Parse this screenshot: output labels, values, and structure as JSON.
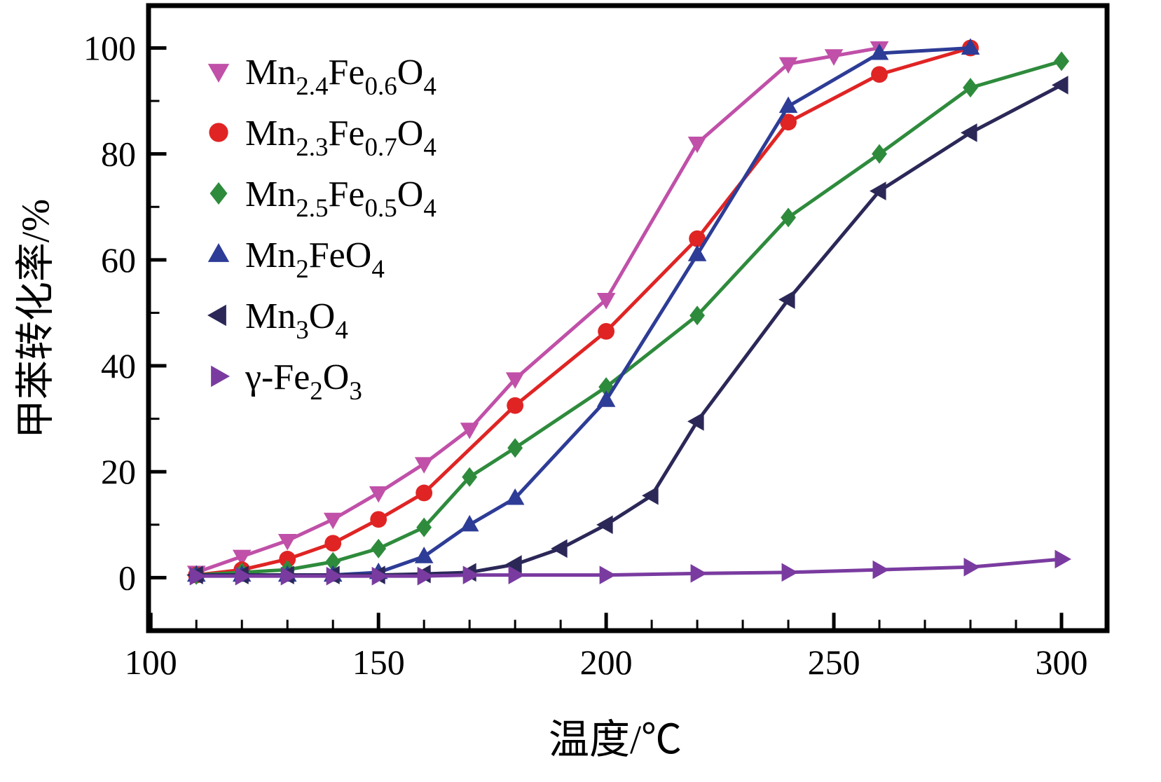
{
  "figure": {
    "background": "#ffffff",
    "frame_color": "#000000",
    "tick_color": "#000000",
    "text_color": "#000000"
  },
  "chart_data": {
    "type": "line",
    "title": "",
    "xlabel": "温度/℃",
    "ylabel": "甲苯转化率/%",
    "xlim": [
      99.5,
      310
    ],
    "ylim": [
      -10,
      108
    ],
    "x_ticks": [
      100,
      150,
      200,
      250,
      300
    ],
    "y_ticks": [
      0,
      20,
      40,
      60,
      80,
      100
    ],
    "x_minor_step": 10,
    "y_minor_step": 10,
    "grid": false,
    "legend_position": "top-left",
    "series": [
      {
        "name": "Mn_{2.4}Fe_{0.6}O_{4}",
        "marker": "triangle-down",
        "color": "#c050a8",
        "x": [
          110,
          120,
          130,
          140,
          150,
          160,
          170,
          180,
          200,
          220,
          240,
          250,
          260
        ],
        "y": [
          1,
          4,
          7,
          11,
          16,
          21.5,
          28,
          37.5,
          52.5,
          82,
          97,
          98.5,
          100
        ]
      },
      {
        "name": "Mn_{2.3}Fe_{0.7}O_{4}",
        "marker": "circle",
        "color": "#e02424",
        "x": [
          110,
          120,
          130,
          140,
          150,
          160,
          180,
          200,
          220,
          240,
          260,
          280
        ],
        "y": [
          0.5,
          1.5,
          3.5,
          6.5,
          11,
          16,
          32.5,
          46.5,
          64,
          86,
          95,
          100
        ]
      },
      {
        "name": "Mn_{2.5}Fe_{0.5}O_{4}",
        "marker": "diamond",
        "color": "#2e8b3c",
        "x": [
          110,
          120,
          130,
          140,
          150,
          160,
          170,
          180,
          200,
          220,
          240,
          260,
          280,
          300
        ],
        "y": [
          0.5,
          1,
          1.5,
          3,
          5.5,
          9.5,
          19,
          24.5,
          36,
          49.5,
          68,
          80,
          92.5,
          97.5
        ]
      },
      {
        "name": "Mn_{2}FeO_{4}",
        "marker": "triangle-up",
        "color": "#2d3c96",
        "x": [
          110,
          120,
          130,
          140,
          150,
          160,
          170,
          180,
          200,
          220,
          240,
          260,
          280
        ],
        "y": [
          0.5,
          0.5,
          0.5,
          0.5,
          1,
          4,
          10,
          15,
          33.5,
          61,
          89,
          99,
          100
        ]
      },
      {
        "name": "Mn_{3}O_{4}",
        "marker": "triangle-left",
        "color": "#2b2858",
        "x": [
          110,
          120,
          130,
          140,
          150,
          160,
          170,
          180,
          190,
          200,
          210,
          220,
          240,
          260,
          280,
          300
        ],
        "y": [
          0.5,
          0.5,
          0.5,
          0.5,
          0.5,
          0.7,
          1,
          2.5,
          5.5,
          10,
          15.5,
          29.5,
          52.5,
          73,
          84,
          93
        ]
      },
      {
        "name": "γ-Fe_{2}O_{3}",
        "marker": "triangle-right",
        "color": "#7a3ba0",
        "x": [
          110,
          120,
          130,
          140,
          150,
          160,
          170,
          180,
          200,
          220,
          240,
          260,
          280,
          300
        ],
        "y": [
          0.3,
          0.3,
          0.3,
          0.3,
          0.3,
          0.3,
          0.5,
          0.5,
          0.5,
          0.8,
          1,
          1.5,
          2,
          3.5
        ]
      }
    ]
  }
}
